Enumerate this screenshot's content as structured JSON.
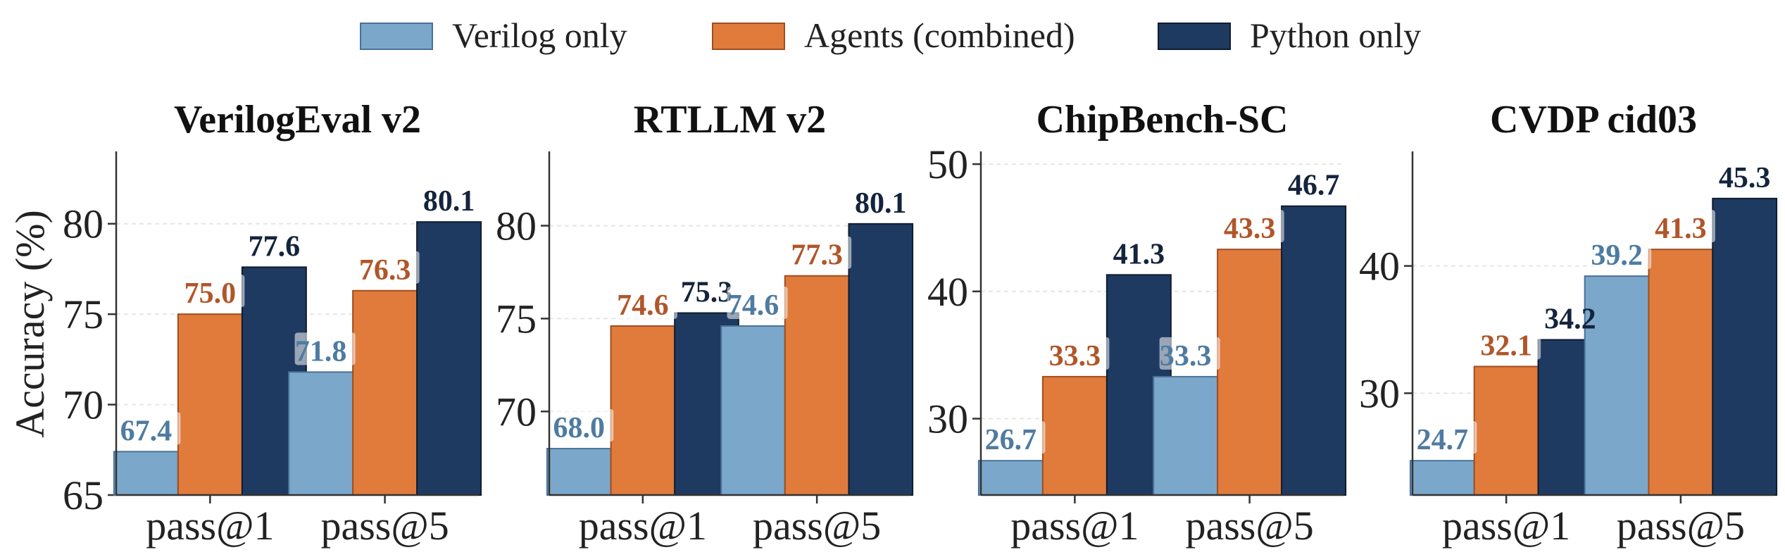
{
  "legend": {
    "placement": "top-center",
    "items": [
      {
        "label": "Verilog only",
        "color": "#7BA7CA"
      },
      {
        "label": "Agents (combined)",
        "color": "#E07B3C"
      },
      {
        "label": "Python only",
        "color": "#1F3A60"
      }
    ]
  },
  "colors": {
    "verilog_label": "#4E7BA1",
    "agents_label": "#B0562A",
    "python_label": "#14243C",
    "axis": "#333333",
    "grid": "#e6e6e6"
  },
  "shared_ylabel": "Accuracy (%)",
  "chart_data": [
    {
      "type": "bar",
      "title": "VerilogEval v2",
      "categories": [
        "pass@1",
        "pass@5"
      ],
      "series": [
        {
          "name": "Verilog only",
          "values": [
            67.4,
            71.8
          ]
        },
        {
          "name": "Agents (combined)",
          "values": [
            75.0,
            76.3
          ]
        },
        {
          "name": "Python only",
          "values": [
            77.6,
            80.1
          ]
        }
      ],
      "ylim": [
        65,
        84
      ],
      "yticks": [
        65,
        70,
        75,
        80
      ],
      "xlabel": "",
      "ylabel": "Accuracy (%)",
      "grid": true
    },
    {
      "type": "bar",
      "title": "RTLLM v2",
      "categories": [
        "pass@1",
        "pass@5"
      ],
      "series": [
        {
          "name": "Verilog only",
          "values": [
            68.0,
            74.6
          ]
        },
        {
          "name": "Agents (combined)",
          "values": [
            74.6,
            77.3
          ]
        },
        {
          "name": "Python only",
          "values": [
            75.3,
            80.1
          ]
        }
      ],
      "ylim": [
        65.5,
        84
      ],
      "yticks": [
        70,
        75,
        80
      ],
      "xlabel": "",
      "ylabel": "",
      "grid": true
    },
    {
      "type": "bar",
      "title": "ChipBench-SC",
      "categories": [
        "pass@1",
        "pass@5"
      ],
      "series": [
        {
          "name": "Verilog only",
          "values": [
            26.7,
            33.3
          ]
        },
        {
          "name": "Agents (combined)",
          "values": [
            33.3,
            43.3
          ]
        },
        {
          "name": "Python only",
          "values": [
            41.3,
            46.7
          ]
        }
      ],
      "ylim": [
        24,
        51
      ],
      "yticks": [
        30,
        40,
        50
      ],
      "xlabel": "",
      "ylabel": "",
      "grid": true
    },
    {
      "type": "bar",
      "title": "CVDP cid03",
      "categories": [
        "pass@1",
        "pass@5"
      ],
      "series": [
        {
          "name": "Verilog only",
          "values": [
            24.7,
            39.2
          ]
        },
        {
          "name": "Agents (combined)",
          "values": [
            32.1,
            41.3
          ]
        },
        {
          "name": "Python only",
          "values": [
            34.2,
            45.3
          ]
        }
      ],
      "ylim": [
        22,
        49
      ],
      "yticks": [
        30,
        40
      ],
      "xlabel": "",
      "ylabel": "",
      "grid": true
    }
  ]
}
